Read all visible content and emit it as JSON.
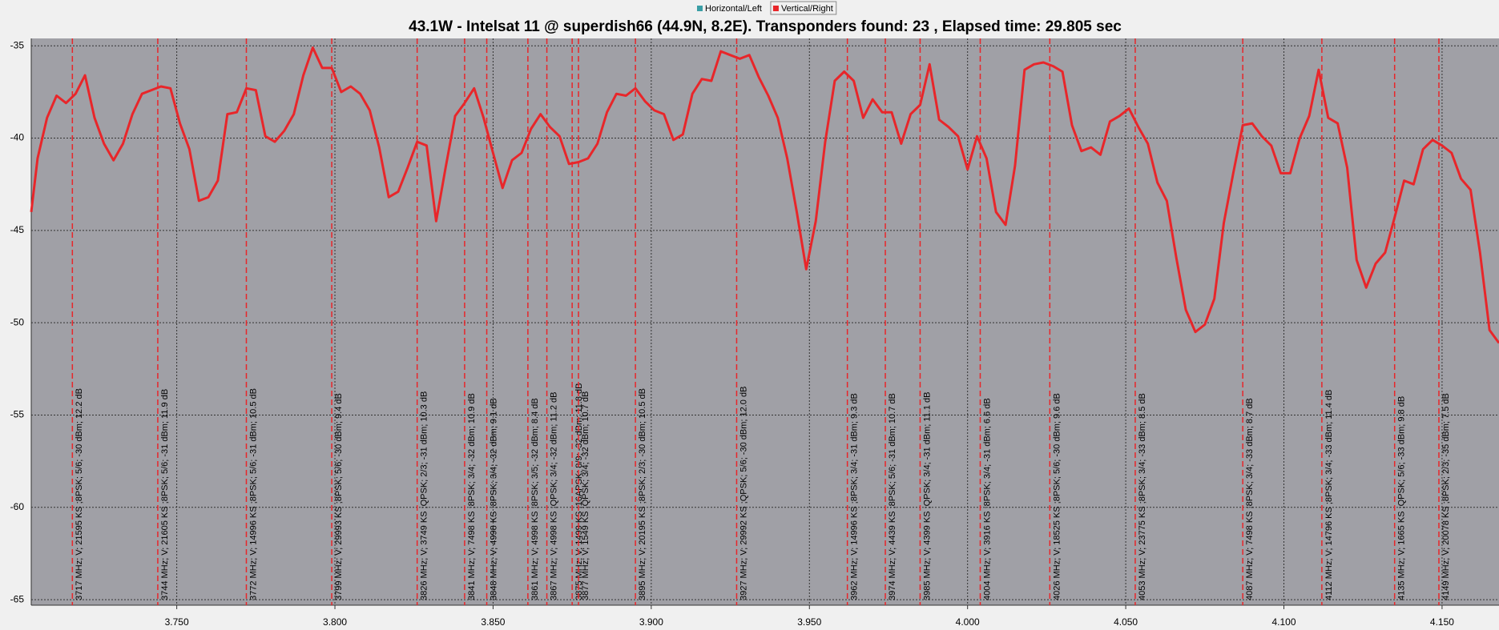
{
  "chart_data": {
    "type": "line",
    "title": "43.1W - Intelsat 11 @ superdish66 (44.9N, 8.2E). Transponders found: 23 , Elapsed time: 29.805 sec",
    "xlim": [
      3.704,
      4.168
    ],
    "ylim": [
      -65.3,
      -34.6
    ],
    "xticks": [
      {
        "value": 3.75,
        "label": "3.750"
      },
      {
        "value": 3.8,
        "label": "3.800"
      },
      {
        "value": 3.85,
        "label": "3.850"
      },
      {
        "value": 3.9,
        "label": "3.900"
      },
      {
        "value": 3.95,
        "label": "3.950"
      },
      {
        "value": 4.0,
        "label": "4.000"
      },
      {
        "value": 4.05,
        "label": "4.050"
      },
      {
        "value": 4.1,
        "label": "4.100"
      },
      {
        "value": 4.15,
        "label": "4.150"
      }
    ],
    "yticks": [
      -35,
      -40,
      -45,
      -50,
      -55,
      -60,
      -65
    ],
    "grid": true,
    "legend": "top",
    "series": [
      {
        "name": "Horizontal/Left",
        "color": "#3a9ea5",
        "x": [],
        "values": []
      },
      {
        "name": "Vertical/Right",
        "color": "#e8262a",
        "x": [
          3.704,
          3.706,
          3.709,
          3.712,
          3.715,
          3.718,
          3.721,
          3.724,
          3.727,
          3.73,
          3.733,
          3.736,
          3.739,
          3.742,
          3.745,
          3.748,
          3.751,
          3.754,
          3.757,
          3.76,
          3.763,
          3.766,
          3.769,
          3.772,
          3.775,
          3.778,
          3.781,
          3.784,
          3.787,
          3.79,
          3.793,
          3.796,
          3.799,
          3.802,
          3.805,
          3.808,
          3.811,
          3.814,
          3.817,
          3.82,
          3.823,
          3.826,
          3.829,
          3.832,
          3.835,
          3.838,
          3.841,
          3.844,
          3.847,
          3.85,
          3.853,
          3.856,
          3.859,
          3.862,
          3.865,
          3.868,
          3.871,
          3.874,
          3.877,
          3.88,
          3.883,
          3.886,
          3.889,
          3.892,
          3.895,
          3.898,
          3.901,
          3.904,
          3.907,
          3.91,
          3.913,
          3.916,
          3.919,
          3.922,
          3.925,
          3.928,
          3.931,
          3.934,
          3.937,
          3.94,
          3.943,
          3.946,
          3.949,
          3.952,
          3.955,
          3.958,
          3.961,
          3.964,
          3.967,
          3.97,
          3.973,
          3.976,
          3.979,
          3.982,
          3.985,
          3.988,
          3.991,
          3.994,
          3.997,
          4.0,
          4.003,
          4.006,
          4.009,
          4.012,
          4.015,
          4.018,
          4.021,
          4.024,
          4.027,
          4.03,
          4.033,
          4.036,
          4.039,
          4.042,
          4.045,
          4.048,
          4.051,
          4.054,
          4.057,
          4.06,
          4.063,
          4.066,
          4.069,
          4.072,
          4.075,
          4.078,
          4.081,
          4.084,
          4.087,
          4.09,
          4.093,
          4.096,
          4.099,
          4.102,
          4.105,
          4.108,
          4.111,
          4.114,
          4.117,
          4.12,
          4.123,
          4.126,
          4.129,
          4.132,
          4.135,
          4.138,
          4.141,
          4.144,
          4.147,
          4.15,
          4.153,
          4.156,
          4.159,
          4.162,
          4.165,
          4.168
        ],
        "values": [
          -44.0,
          -41.1,
          -38.9,
          -37.7,
          -38.1,
          -37.6,
          -36.6,
          -38.9,
          -40.3,
          -41.2,
          -40.3,
          -38.7,
          -37.6,
          -37.4,
          -37.2,
          -37.3,
          -39.2,
          -40.6,
          -43.4,
          -43.2,
          -42.3,
          -38.7,
          -38.6,
          -37.3,
          -37.4,
          -39.9,
          -40.2,
          -39.6,
          -38.7,
          -36.6,
          -35.1,
          -36.2,
          -36.2,
          -37.5,
          -37.2,
          -37.6,
          -38.5,
          -40.5,
          -43.2,
          -42.9,
          -41.6,
          -40.2,
          -40.4,
          -44.5,
          -41.6,
          -38.8,
          -38.1,
          -37.3,
          -38.9,
          -40.8,
          -42.7,
          -41.2,
          -40.8,
          -39.5,
          -38.7,
          -39.4,
          -39.9,
          -41.4,
          -41.3,
          -41.1,
          -40.3,
          -38.6,
          -37.6,
          -37.7,
          -37.3,
          -38.0,
          -38.5,
          -38.7,
          -40.1,
          -39.8,
          -37.6,
          -36.8,
          -36.9,
          -35.3,
          -35.5,
          -35.7,
          -35.5,
          -36.7,
          -37.7,
          -38.9,
          -41.1,
          -44.0,
          -47.1,
          -44.5,
          -40.2,
          -36.9,
          -36.4,
          -36.9,
          -38.9,
          -37.9,
          -38.6,
          -38.6,
          -40.3,
          -38.7,
          -38.2,
          -36.0,
          -39.0,
          -39.4,
          -39.9,
          -41.7,
          -39.9,
          -41.1,
          -44.0,
          -44.7,
          -41.5,
          -36.3,
          -36.0,
          -35.9,
          -36.1,
          -36.4,
          -39.3,
          -40.7,
          -40.5,
          -40.9,
          -39.1,
          -38.8,
          -38.4,
          -39.4,
          -40.3,
          -42.4,
          -43.4,
          -46.5,
          -49.3,
          -50.5,
          -50.1,
          -48.7,
          -44.6,
          -41.9,
          -39.3,
          -39.2,
          -39.9,
          -40.4,
          -41.9,
          -41.9,
          -40.0,
          -38.8,
          -36.3,
          -38.9,
          -39.2,
          -41.6,
          -46.6,
          -48.1,
          -46.8,
          -46.2,
          -44.3,
          -42.3,
          -42.5,
          -40.6,
          -40.1,
          -40.4,
          -40.8,
          -42.2,
          -42.8,
          -46.2,
          -50.4,
          -51.1
        ]
      }
    ],
    "markers": [
      {
        "x": 3.717,
        "label": "3717 MHz; V; 21595 KS ;8PSK; 5/6; -30 dBm; 12.2 dB"
      },
      {
        "x": 3.744,
        "label": "3744 MHz; V; 21605 KS ;8PSK; 5/6; -31 dBm; 11.9 dB"
      },
      {
        "x": 3.772,
        "label": "3772 MHz; V; 14996 KS ;8PSK; 5/6; -31 dBm; 10.5 dB"
      },
      {
        "x": 3.799,
        "label": "3799 MHz; V; 29993 KS ;8PSK; 5/6; -30 dBm; 9.4 dB"
      },
      {
        "x": 3.826,
        "label": "3826 MHz; V; 3749 KS ;QPSK; 2/3; -31 dBm; 10.3 dB"
      },
      {
        "x": 3.841,
        "label": "3841 MHz; V; 7498 KS ;8PSK; 3/4; -32 dBm; 10.9 dB"
      },
      {
        "x": 3.848,
        "label": "3848 MHz; V; 4998 KS ;8PSK; 3/4; -32 dBm; 9.1 dB"
      },
      {
        "x": 3.861,
        "label": "3861 MHz; V; 4998 KS ;8PSK; 3/5; -32 dBm; 8.4 dB"
      },
      {
        "x": 3.867,
        "label": "3867 MHz; V; 4998 KS ;QPSK; 3/4; -32 dBm; 11.2 dB"
      },
      {
        "x": 3.875,
        "label": "3875 MHz; V; 1499 KS ;16APSK; 8/9; -32 dBm; 11.8 dB"
      },
      {
        "x": 3.877,
        "label": "3877 MHz; V; 1549 KS ;QPSK; 3/4; -32 dBm; 10.7 dB"
      },
      {
        "x": 3.895,
        "label": "3895 MHz; V; 20195 KS ;8PSK; 2/3; -30 dBm; 10.5 dB"
      },
      {
        "x": 3.927,
        "label": "3927 MHz; V; 29992 KS ;QPSK; 5/6; -30 dBm; 12.0 dB"
      },
      {
        "x": 3.962,
        "label": "3962 MHz; V; 14996 KS ;8PSK; 3/4; -31 dBm; 9.3 dB"
      },
      {
        "x": 3.974,
        "label": "3974 MHz; V; 4439 KS ;8PSK; 5/6; -31 dBm; 10.7 dB"
      },
      {
        "x": 3.985,
        "label": "3985 MHz; V; 4399 KS ;QPSK; 3/4; -31 dBm; 11.1 dB"
      },
      {
        "x": 4.004,
        "label": "4004 MHz; V; 3916 KS ;8PSK; 3/4; -31 dBm; 6.6 dB"
      },
      {
        "x": 4.026,
        "label": "4026 MHz; V; 18525 KS ;8PSK; 5/6; -30 dBm; 9.6 dB"
      },
      {
        "x": 4.053,
        "label": "4053 MHz; V; 23775 KS ;8PSK; 3/4; -33 dBm; 8.5 dB"
      },
      {
        "x": 4.087,
        "label": "4087 MHz; V; 7498 KS ;8PSK; 3/4; -33 dBm; 8.7 dB"
      },
      {
        "x": 4.112,
        "label": "4112 MHz; V; 14796 KS ;8PSK; 3/4; -33 dBm; 11.4 dB"
      },
      {
        "x": 4.135,
        "label": "4135 MHz; V; 1665 KS ;QPSK; 5/6; -33 dBm; 9.8 dB"
      },
      {
        "x": 4.149,
        "label": "4149 MHz; V; 20078 KS ;8PSK; 2/3; -35 dBm; 7.5 dB"
      }
    ]
  }
}
